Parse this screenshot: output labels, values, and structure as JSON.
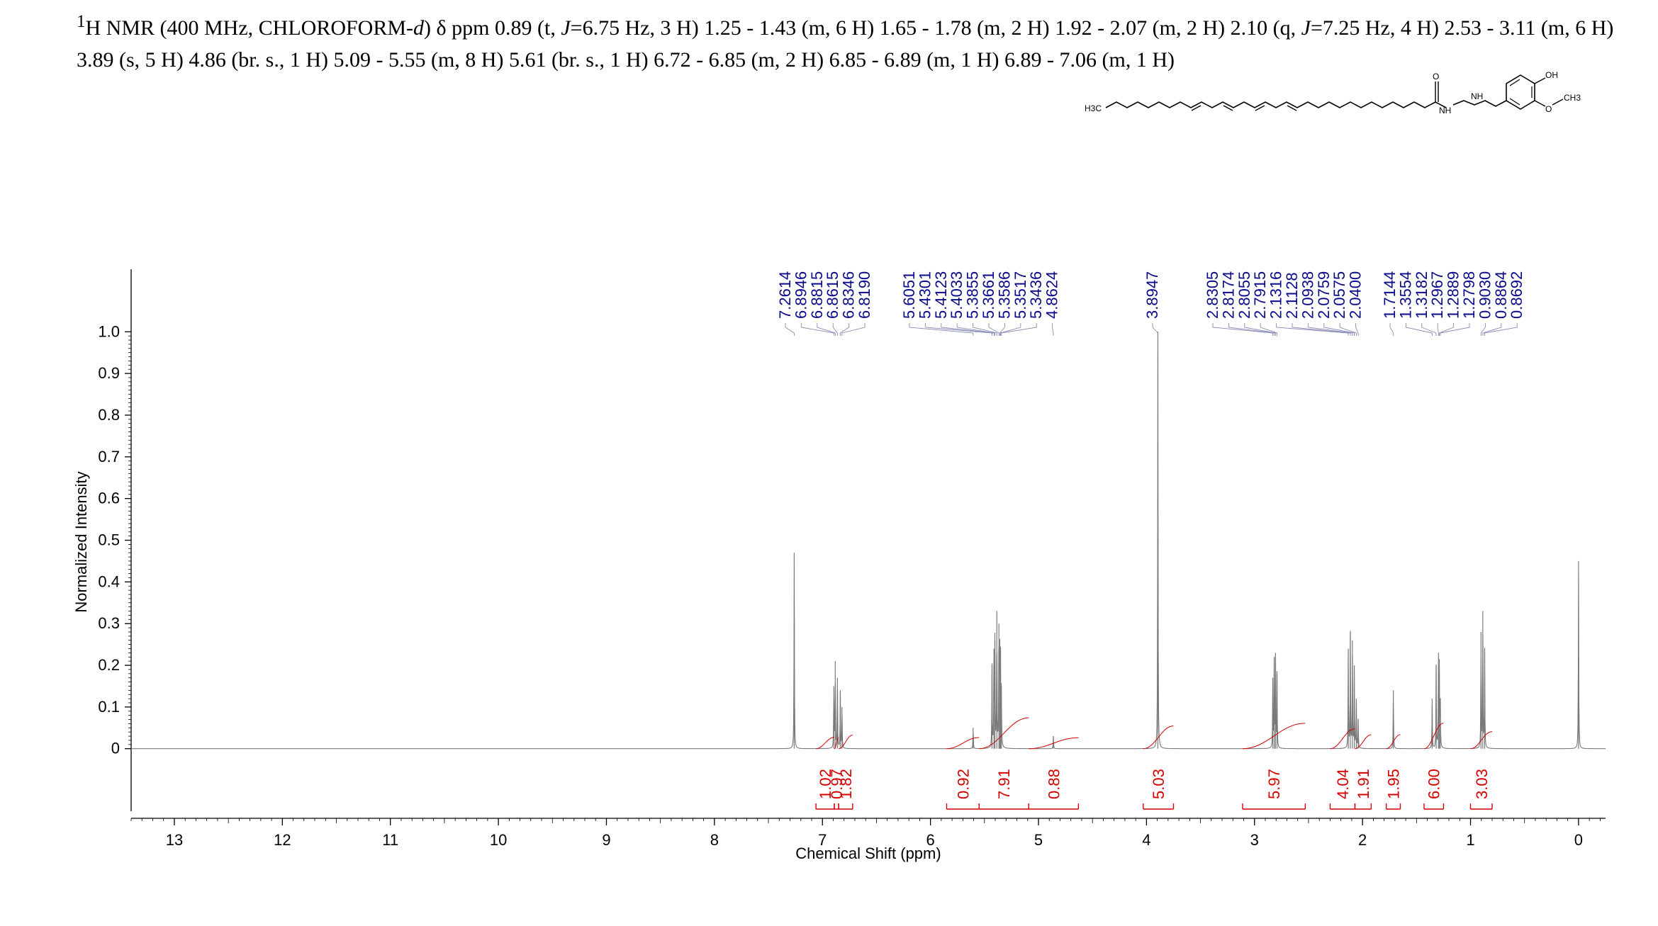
{
  "header": {
    "sup": "1",
    "text_a": "H NMR (400 MHz, CHLOROFORM-",
    "italic_d": "d",
    "text_b": ") δ ppm 0.89 (t, ",
    "italic_j1": "J",
    "text_c": "=6.75 Hz, 3 H) 1.25 - 1.43 (m, 6 H) 1.65 - 1.78 (m, 2 H) 1.92 - 2.07 (m, 2 H) 2.10 (q,  ",
    "italic_j2": "J",
    "text_d": "=7.25 Hz, 4 H) 2.53 - 3.11 (m, 6 H) 3.89 (s, 5 H) 4.86 (br. s., 1 H) 5.09 - 5.55 (m, 8 H) 5.61 (br. s., 1 H) 6.72 - 6.85 (m, 2 H) 6.85 - 6.89 (m, 1 H) 6.89 - 7.06 (m, 1 H)"
  },
  "structure": {
    "labels": [
      "H3C",
      "O",
      "NH",
      "NH",
      "OH",
      "O",
      "CH3"
    ]
  },
  "chart_data": {
    "type": "line",
    "xlabel": "Chemical Shift (ppm)",
    "ylabel": "Normalized Intensity",
    "xlim": [
      13.4,
      -0.25
    ],
    "ylim": [
      -0.15,
      1.15
    ],
    "x_ticks": [
      13,
      12,
      11,
      10,
      9,
      8,
      7,
      6,
      5,
      4,
      3,
      2,
      1,
      0
    ],
    "y_ticks": [
      0,
      0.1,
      0.2,
      0.3,
      0.4,
      0.5,
      0.6,
      0.7,
      0.8,
      0.9,
      1.0
    ],
    "y_tick_labels": [
      "0",
      "0.1",
      "0.2",
      "0.3",
      "0.4",
      "0.5",
      "0.6",
      "0.7",
      "0.8",
      "0.9",
      "1.0"
    ],
    "peak_labels": [
      "7.2614",
      "6.8946",
      "6.8815",
      "6.8615",
      "6.8346",
      "6.8190",
      "5.6051",
      "5.4301",
      "5.4123",
      "5.4033",
      "5.3855",
      "5.3661",
      "5.3586",
      "5.3517",
      "5.3436",
      "4.8624",
      "3.8947",
      "2.8305",
      "2.8174",
      "2.8055",
      "2.7915",
      "2.1316",
      "2.1128",
      "2.0938",
      "2.0759",
      "2.0575",
      "2.0400",
      "1.7144",
      "1.3554",
      "1.3182",
      "1.2967",
      "1.2889",
      "1.2798",
      "0.9030",
      "0.8864",
      "0.8692"
    ],
    "peaks": [
      {
        "x": 7.2614,
        "y": 0.47
      },
      {
        "x": 6.8946,
        "y": 0.15
      },
      {
        "x": 6.8815,
        "y": 0.21
      },
      {
        "x": 6.8615,
        "y": 0.17
      },
      {
        "x": 6.8346,
        "y": 0.14
      },
      {
        "x": 6.819,
        "y": 0.1
      },
      {
        "x": 5.6051,
        "y": 0.05
      },
      {
        "x": 5.4301,
        "y": 0.2
      },
      {
        "x": 5.4123,
        "y": 0.24
      },
      {
        "x": 5.4033,
        "y": 0.26
      },
      {
        "x": 5.3855,
        "y": 0.33
      },
      {
        "x": 5.3661,
        "y": 0.3
      },
      {
        "x": 5.3586,
        "y": 0.25
      },
      {
        "x": 5.3517,
        "y": 0.22
      },
      {
        "x": 5.3436,
        "y": 0.15
      },
      {
        "x": 4.8624,
        "y": 0.03
      },
      {
        "x": 3.8947,
        "y": 1.0
      },
      {
        "x": 2.8305,
        "y": 0.17
      },
      {
        "x": 2.8174,
        "y": 0.22
      },
      {
        "x": 2.8055,
        "y": 0.23
      },
      {
        "x": 2.7915,
        "y": 0.18
      },
      {
        "x": 2.1316,
        "y": 0.24
      },
      {
        "x": 2.1128,
        "y": 0.28
      },
      {
        "x": 2.0938,
        "y": 0.26
      },
      {
        "x": 2.0759,
        "y": 0.2
      },
      {
        "x": 2.0575,
        "y": 0.12
      },
      {
        "x": 2.04,
        "y": 0.07
      },
      {
        "x": 1.7144,
        "y": 0.14
      },
      {
        "x": 1.3554,
        "y": 0.12
      },
      {
        "x": 1.3182,
        "y": 0.2
      },
      {
        "x": 1.2967,
        "y": 0.23
      },
      {
        "x": 1.2889,
        "y": 0.19
      },
      {
        "x": 1.2798,
        "y": 0.12
      },
      {
        "x": 0.903,
        "y": 0.28
      },
      {
        "x": 0.8864,
        "y": 0.33
      },
      {
        "x": 0.8692,
        "y": 0.24
      },
      {
        "x": 0.0,
        "y": 0.45
      }
    ],
    "integrals": [
      {
        "label": "1.02",
        "from": 7.06,
        "to": 6.89
      },
      {
        "label": "0.97",
        "from": 6.89,
        "to": 6.85
      },
      {
        "label": "1.82",
        "from": 6.85,
        "to": 6.72
      },
      {
        "label": "0.92",
        "from": 5.85,
        "to": 5.55
      },
      {
        "label": "7.91",
        "from": 5.55,
        "to": 5.09
      },
      {
        "label": "0.88",
        "from": 5.09,
        "to": 4.63
      },
      {
        "label": "5.03",
        "from": 4.03,
        "to": 3.75
      },
      {
        "label": "5.97",
        "from": 3.11,
        "to": 2.53
      },
      {
        "label": "4.04",
        "from": 2.3,
        "to": 2.07
      },
      {
        "label": "1.91",
        "from": 2.07,
        "to": 1.92
      },
      {
        "label": "1.95",
        "from": 1.78,
        "to": 1.65
      },
      {
        "label": "6.00",
        "from": 1.43,
        "to": 1.25
      },
      {
        "label": "3.03",
        "from": 1.0,
        "to": 0.8
      }
    ],
    "colors": {
      "spectrum": "#7a7a7a",
      "peak_label": "#0a0a8c",
      "integral": "#d40000",
      "axis": "#000000"
    },
    "grid": false
  }
}
